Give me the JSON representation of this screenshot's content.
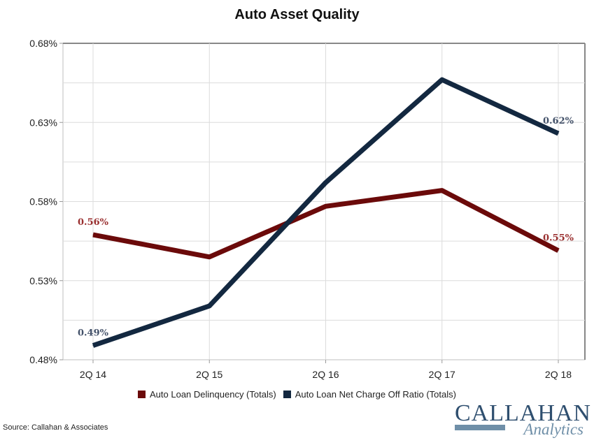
{
  "chart_data": {
    "type": "line",
    "title": "Auto Asset Quality",
    "categories": [
      "2Q 14",
      "2Q 15",
      "2Q 16",
      "2Q 17",
      "2Q 18"
    ],
    "ylim": [
      0.0048,
      0.0068
    ],
    "yticks": [
      "0.48%",
      "0.53%",
      "0.58%",
      "0.63%",
      "0.68%"
    ],
    "ytick_values": [
      0.0048,
      0.0053,
      0.0058,
      0.0063,
      0.0068
    ],
    "grid": true,
    "legend_position": "bottom",
    "series": [
      {
        "name": "Auto Loan Delinquency  (Totals)",
        "color": "#6b0a0a",
        "values": [
          0.00559,
          0.00545,
          0.00577,
          0.00587,
          0.00549
        ],
        "labels": [
          "0.56%",
          "",
          "",
          "",
          "0.55%"
        ]
      },
      {
        "name": "Auto Loan Net Charge Off Ratio (Totals)",
        "color": "#132840",
        "values": [
          0.00489,
          0.00514,
          0.00592,
          0.00657,
          0.00623
        ],
        "labels": [
          "0.49%",
          "",
          "",
          "",
          "0.62%"
        ]
      }
    ]
  },
  "footer": {
    "source": "Source: Callahan & Associates",
    "logo_main": "CALLAHAN",
    "logo_sub": "Analytics"
  },
  "colors": {
    "delinquency_label": "#9a3030",
    "chargeoff_label": "#44526a"
  }
}
